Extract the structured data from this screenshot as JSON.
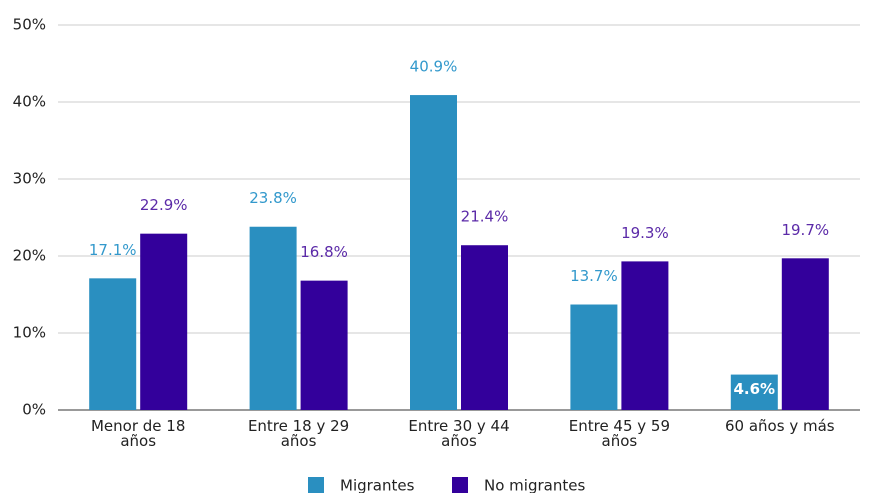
{
  "chart_data": {
    "type": "bar",
    "categories": [
      "Menor de 18 años",
      "Entre 18 y 29 años",
      "Entre 30 y 44 años",
      "Entre 45 y 59 años",
      "60 años y más"
    ],
    "series": [
      {
        "name": "Migrantes",
        "color": "#2a8fc0",
        "values": [
          17.1,
          23.8,
          40.9,
          13.7,
          4.6
        ],
        "value_labels": [
          "17.1%",
          "23.8%",
          "40.9%",
          "13.7%",
          "4.6%"
        ]
      },
      {
        "name": "No migrantes",
        "color": "#33009b",
        "values": [
          22.9,
          16.8,
          21.4,
          19.3,
          19.7
        ],
        "value_labels": [
          "22.9%",
          "16.8%",
          "21.4%",
          "19.3%",
          "19.7%"
        ]
      }
    ],
    "ylim": [
      0,
      50
    ],
    "yticks": [
      {
        "value": 0,
        "label": "0%"
      },
      {
        "value": 10,
        "label": "10%"
      },
      {
        "value": 20,
        "label": "20%"
      },
      {
        "value": 30,
        "label": "30%"
      },
      {
        "value": 40,
        "label": "40%"
      },
      {
        "value": 50,
        "label": "50%"
      }
    ],
    "grid": true,
    "legend": "bottom"
  }
}
